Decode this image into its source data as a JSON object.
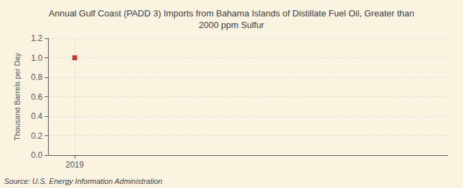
{
  "chart_data": {
    "type": "scatter",
    "title": "Annual Gulf Coast (PADD 3) Imports from Bahama Islands of Distillate Fuel Oil, Greater than\n2000 ppm Sulfur",
    "ylabel": "Thousand Barrels per Day",
    "source": "Source: U.S. Energy Information Administration",
    "x": [
      2019
    ],
    "values": [
      1.0
    ],
    "color": "#cc0000",
    "marker": "square",
    "xlim": [
      2018.5,
      2026
    ],
    "xticks": [
      2019
    ],
    "ylim": [
      0.0,
      1.2
    ],
    "yticks": [
      {
        "value": 0.0,
        "label": "0.0"
      },
      0.2,
      0.4,
      0.6,
      0.8,
      {
        "value": 1.0,
        "label": "1.0"
      },
      1.2
    ],
    "grid": true
  }
}
